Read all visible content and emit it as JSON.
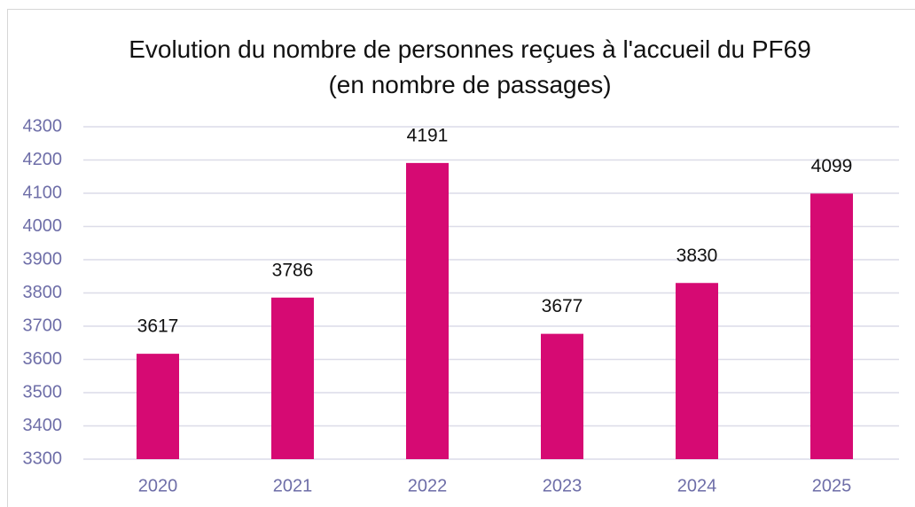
{
  "chart_data": {
    "type": "bar",
    "title": "Evolution du nombre de personnes reçues à l'accueil du PF69 (en nombre de passages)",
    "categories": [
      "2020",
      "2021",
      "2022",
      "2023",
      "2024",
      "2025"
    ],
    "values": [
      3617,
      3786,
      4191,
      3677,
      3830,
      4099
    ],
    "color": "#d60a73",
    "ylim": [
      3300,
      4300
    ],
    "yticks": [
      3300,
      3400,
      3500,
      3600,
      3700,
      3800,
      3900,
      4000,
      4100,
      4200,
      4300
    ],
    "grid": true
  }
}
